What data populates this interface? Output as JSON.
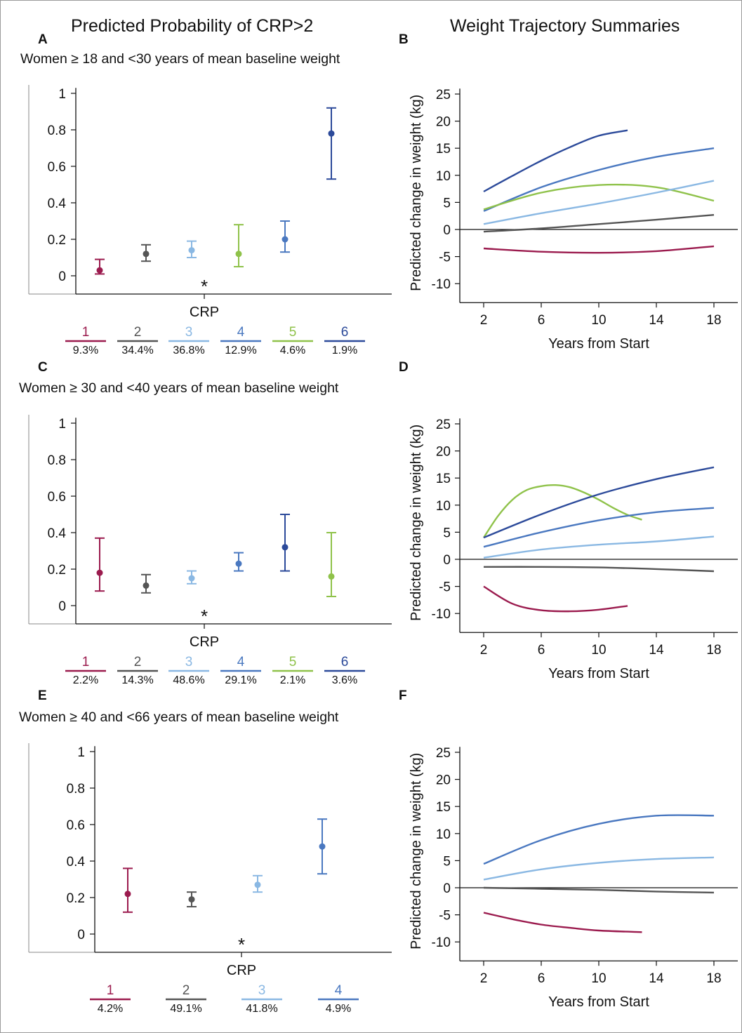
{
  "titles": {
    "left": "Predicted Probability of CRP>2",
    "right": "Weight Trajectory Summaries"
  },
  "colors": {
    "1": "#9b1b4e",
    "2": "#555555",
    "3": "#8ab8e3",
    "4": "#4a78c0",
    "5": "#8fc24a",
    "6": "#2c4a9a"
  },
  "panels": {
    "A": {
      "letter": "A",
      "subtitle": "Women ≥ 18 and <30 years of mean baseline weight",
      "chart_data": {
        "type": "scatter",
        "error_bars": true,
        "yticks": [
          0,
          0.2,
          0.4,
          0.6,
          0.8,
          1
        ],
        "ylim": [
          -0.1,
          1.02
        ],
        "xlabel": "CRP",
        "annotation": "*",
        "series": [
          {
            "group": "1",
            "value": 0.03,
            "lower": 0.01,
            "upper": 0.09,
            "percent": "9.3%"
          },
          {
            "group": "2",
            "value": 0.12,
            "lower": 0.08,
            "upper": 0.17,
            "percent": "34.4%"
          },
          {
            "group": "3",
            "value": 0.14,
            "lower": 0.1,
            "upper": 0.19,
            "percent": "36.8%"
          },
          {
            "group": "4",
            "value": 0.12,
            "lower": 0.05,
            "upper": 0.28,
            "percent": "12.9%",
            "color_key": "5"
          },
          {
            "group": "5",
            "value": 0.2,
            "lower": 0.13,
            "upper": 0.3,
            "percent": "4.6%",
            "color_key": "4"
          },
          {
            "group": "6",
            "value": 0.78,
            "lower": 0.53,
            "upper": 0.92,
            "percent": "1.9%"
          }
        ],
        "legend": [
          {
            "label": "1",
            "percent": "9.3%"
          },
          {
            "label": "2",
            "percent": "34.4%"
          },
          {
            "label": "3",
            "percent": "36.8%"
          },
          {
            "label": "4",
            "percent": "12.9%"
          },
          {
            "label": "5",
            "percent": "4.6%"
          },
          {
            "label": "6",
            "percent": "1.9%"
          }
        ]
      }
    },
    "B": {
      "letter": "B",
      "chart_data": {
        "type": "line",
        "xlabel": "Years from Start",
        "ylabel": "Predicted change in weight (kg)",
        "xticks": [
          2,
          6,
          10,
          14,
          18
        ],
        "yticks": [
          -10,
          -5,
          0,
          5,
          10,
          15,
          20,
          25
        ],
        "xlim": [
          0.6,
          19.6
        ],
        "ylim": [
          -13.5,
          26
        ],
        "zero_line": true,
        "series": [
          {
            "group": "6",
            "x": [
              2,
              4,
              6,
              8,
              10,
              12
            ],
            "y": [
              7,
              9.9,
              12.7,
              15.2,
              17.3,
              18.3
            ]
          },
          {
            "group": "4",
            "x": [
              2,
              6,
              10,
              14,
              18
            ],
            "y": [
              3.4,
              7.8,
              11,
              13.4,
              15
            ]
          },
          {
            "group": "5",
            "x": [
              2,
              6,
              10,
              14,
              18
            ],
            "y": [
              3.7,
              6.8,
              8.2,
              7.8,
              5.3
            ]
          },
          {
            "group": "3",
            "x": [
              2,
              6,
              10,
              14,
              18
            ],
            "y": [
              1,
              3,
              4.8,
              6.8,
              9
            ]
          },
          {
            "group": "2",
            "x": [
              2,
              6,
              10,
              14,
              18
            ],
            "y": [
              -0.4,
              0.2,
              1,
              1.8,
              2.7
            ]
          },
          {
            "group": "1",
            "x": [
              2,
              6,
              10,
              14,
              18
            ],
            "y": [
              -3.5,
              -4.1,
              -4.3,
              -4.0,
              -3.1
            ]
          }
        ]
      }
    },
    "C": {
      "letter": "C",
      "subtitle": "Women ≥ 30 and <40 years of mean baseline weight",
      "chart_data": {
        "type": "scatter",
        "error_bars": true,
        "yticks": [
          0,
          0.2,
          0.4,
          0.6,
          0.8,
          1
        ],
        "ylim": [
          -0.1,
          1.02
        ],
        "xlabel": "CRP",
        "annotation": "*",
        "series": [
          {
            "group": "1",
            "value": 0.18,
            "lower": 0.08,
            "upper": 0.37,
            "percent": "2.2%"
          },
          {
            "group": "2",
            "value": 0.11,
            "lower": 0.07,
            "upper": 0.17,
            "percent": "14.3%"
          },
          {
            "group": "3",
            "value": 0.15,
            "lower": 0.12,
            "upper": 0.19,
            "percent": "48.6%"
          },
          {
            "group": "4",
            "value": 0.23,
            "lower": 0.19,
            "upper": 0.29,
            "percent": "29.1%"
          },
          {
            "group": "6",
            "value": 0.32,
            "lower": 0.19,
            "upper": 0.5,
            "percent": "3.6%"
          },
          {
            "group": "5",
            "value": 0.16,
            "lower": 0.05,
            "upper": 0.4,
            "percent": "2.1%"
          }
        ],
        "legend": [
          {
            "label": "1",
            "percent": "2.2%"
          },
          {
            "label": "2",
            "percent": "14.3%"
          },
          {
            "label": "3",
            "percent": "48.6%"
          },
          {
            "label": "4",
            "percent": "29.1%"
          },
          {
            "label": "5",
            "percent": "2.1%"
          },
          {
            "label": "6",
            "percent": "3.6%"
          }
        ]
      }
    },
    "D": {
      "letter": "D",
      "chart_data": {
        "type": "line",
        "xlabel": "Years from Start",
        "ylabel": "Predicted change in weight (kg)",
        "xticks": [
          2,
          6,
          10,
          14,
          18
        ],
        "yticks": [
          -10,
          -5,
          0,
          5,
          10,
          15,
          20,
          25
        ],
        "xlim": [
          0.6,
          19.6
        ],
        "ylim": [
          -13.5,
          26
        ],
        "zero_line": true,
        "series": [
          {
            "group": "5",
            "x": [
              2,
              3,
              4,
              5,
              6,
              7,
              8,
              9,
              10,
              11,
              12,
              13
            ],
            "y": [
              4,
              8,
              11,
              12.8,
              13.5,
              13.7,
              13.3,
              12.3,
              11,
              9.5,
              8.2,
              7.3
            ]
          },
          {
            "group": "6",
            "x": [
              2,
              6,
              10,
              14,
              18
            ],
            "y": [
              4,
              8.3,
              12,
              14.8,
              17
            ]
          },
          {
            "group": "4",
            "x": [
              2,
              6,
              10,
              14,
              18
            ],
            "y": [
              2.3,
              5,
              7.2,
              8.7,
              9.5
            ]
          },
          {
            "group": "3",
            "x": [
              2,
              6,
              10,
              14,
              18
            ],
            "y": [
              0.3,
              1.8,
              2.7,
              3.3,
              4.2
            ]
          },
          {
            "group": "2",
            "x": [
              2,
              6,
              10,
              14,
              18
            ],
            "y": [
              -1.4,
              -1.4,
              -1.5,
              -1.8,
              -2.2
            ]
          },
          {
            "group": "1",
            "x": [
              2,
              4,
              6,
              8,
              10,
              12
            ],
            "y": [
              -5,
              -8.2,
              -9.4,
              -9.6,
              -9.3,
              -8.6
            ]
          }
        ]
      }
    },
    "E": {
      "letter": "E",
      "subtitle": "Women ≥ 40 and <66 years of mean baseline weight",
      "chart_data": {
        "type": "scatter",
        "error_bars": true,
        "yticks": [
          0,
          0.2,
          0.4,
          0.6,
          0.8,
          1
        ],
        "ylim": [
          -0.1,
          1.02
        ],
        "xlabel": "CRP",
        "annotation": "*",
        "series": [
          {
            "group": "1",
            "value": 0.22,
            "lower": 0.12,
            "upper": 0.36,
            "percent": "4.2%"
          },
          {
            "group": "2",
            "value": 0.19,
            "lower": 0.15,
            "upper": 0.23,
            "percent": "49.1%"
          },
          {
            "group": "3",
            "value": 0.27,
            "lower": 0.23,
            "upper": 0.32,
            "percent": "41.8%"
          },
          {
            "group": "4",
            "value": 0.48,
            "lower": 0.33,
            "upper": 0.63,
            "percent": "4.9%"
          }
        ],
        "legend": [
          {
            "label": "1",
            "percent": "4.2%"
          },
          {
            "label": "2",
            "percent": "49.1%"
          },
          {
            "label": "3",
            "percent": "41.8%"
          },
          {
            "label": "4",
            "percent": "4.9%"
          }
        ]
      }
    },
    "F": {
      "letter": "F",
      "chart_data": {
        "type": "line",
        "xlabel": "Years from Start",
        "ylabel": "Predicted change in weight (kg)",
        "xticks": [
          2,
          6,
          10,
          14,
          18
        ],
        "yticks": [
          -10,
          -5,
          0,
          5,
          10,
          15,
          20,
          25
        ],
        "xlim": [
          0.6,
          19.6
        ],
        "ylim": [
          -13.5,
          26
        ],
        "zero_line": true,
        "series": [
          {
            "group": "4",
            "x": [
              2,
              6,
              10,
              14,
              18
            ],
            "y": [
              4.4,
              8.8,
              11.8,
              13.3,
              13.3
            ]
          },
          {
            "group": "3",
            "x": [
              2,
              6,
              10,
              14,
              18
            ],
            "y": [
              1.5,
              3.4,
              4.6,
              5.3,
              5.6
            ]
          },
          {
            "group": "2",
            "x": [
              2,
              6,
              10,
              14,
              18
            ],
            "y": [
              0,
              -0.2,
              -0.4,
              -0.7,
              -0.9
            ]
          },
          {
            "group": "1",
            "x": [
              2,
              4,
              6,
              8,
              10,
              13
            ],
            "y": [
              -4.6,
              -5.8,
              -6.8,
              -7.4,
              -7.9,
              -8.2
            ]
          }
        ]
      }
    }
  }
}
